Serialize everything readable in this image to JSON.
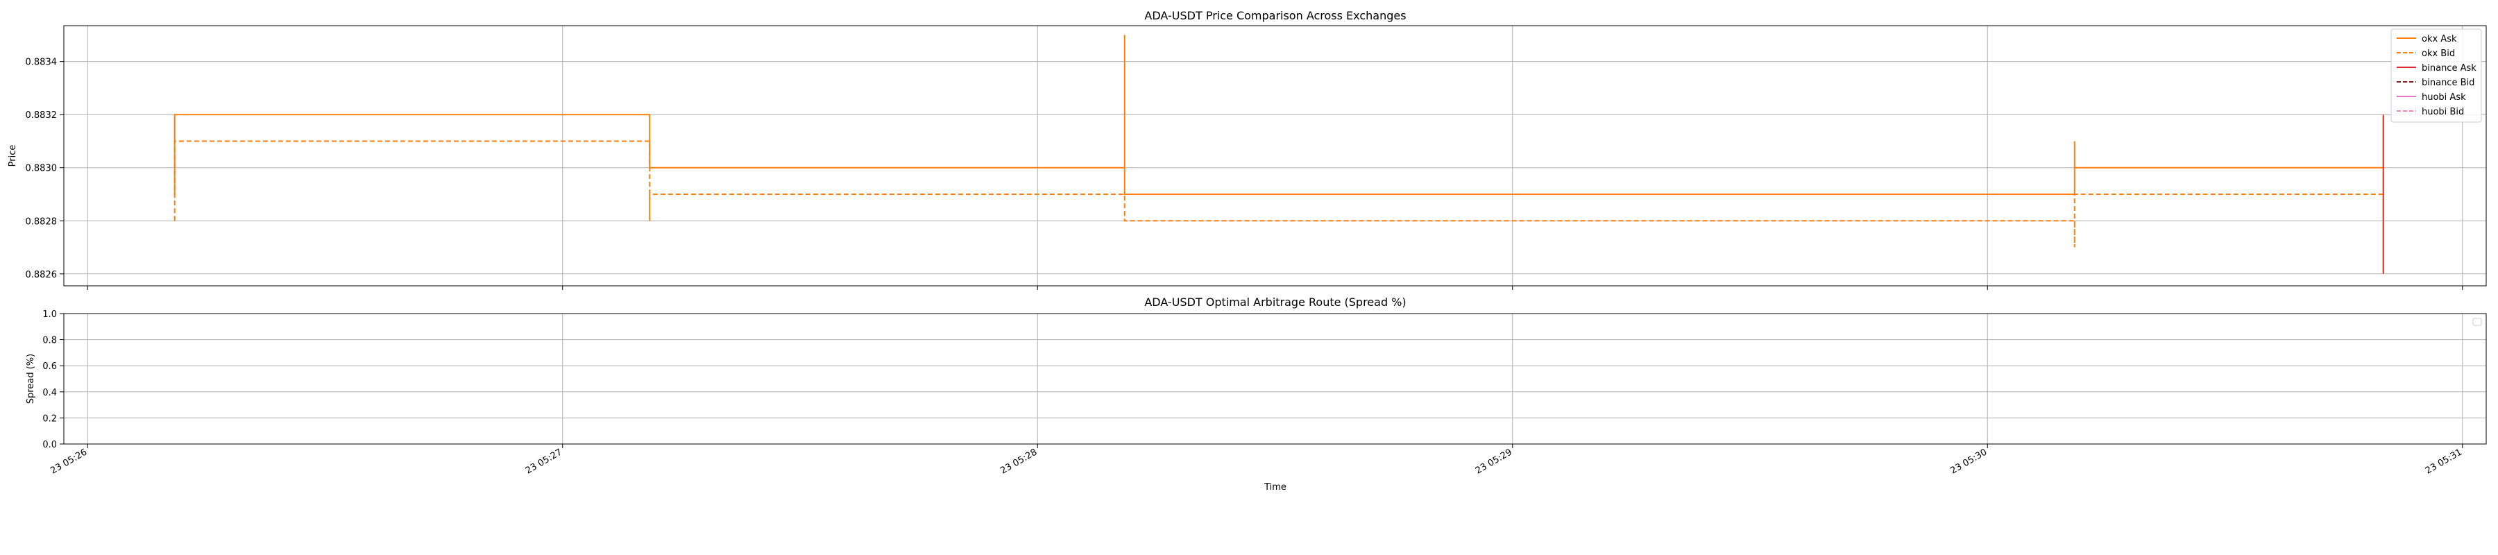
{
  "chart_data": [
    {
      "type": "line",
      "title": "ADA-USDT Price Comparison Across Exchanges",
      "xlabel": "",
      "ylabel": "Price",
      "xlim": [
        "2024-01-23 05:25:57",
        "2024-01-23 05:31:03"
      ],
      "ylim": [
        0.882555,
        0.883535
      ],
      "yticks": [
        0.8826,
        0.8828,
        0.883,
        0.8832,
        0.8834
      ],
      "ytick_labels": [
        "0.8826",
        "0.8828",
        "0.8830",
        "0.8832",
        "0.8834"
      ],
      "grid": true,
      "legend_position": "top-right",
      "series": [
        {
          "name": "okx Ask",
          "color": "#ff7f0e",
          "style": "solid",
          "x": [
            "05:26:11",
            "05:26:11",
            "05:27:11",
            "05:27:11",
            "05:28:11",
            "05:28:11",
            "05:28:11",
            "05:30:11",
            "05:30:11",
            "05:30:11",
            "05:30:50"
          ],
          "y": [
            0.8829,
            0.8832,
            0.8832,
            0.883,
            0.883,
            0.8835,
            0.8829,
            0.8829,
            0.8831,
            0.883,
            0.883
          ]
        },
        {
          "name": "okx Bid",
          "color": "#ff7f0e",
          "style": "dashed",
          "x": [
            "05:26:11",
            "05:26:11",
            "05:27:11",
            "05:27:11",
            "05:27:11",
            "05:28:11",
            "05:28:11",
            "05:28:11",
            "05:30:11",
            "05:30:11",
            "05:30:11",
            "05:30:50"
          ],
          "y": [
            0.8828,
            0.8831,
            0.8831,
            0.8828,
            0.8829,
            0.8829,
            0.8828,
            0.8828,
            0.8828,
            0.8827,
            0.8829,
            0.8829
          ]
        },
        {
          "name": "binance Ask",
          "color": "#d62728",
          "style": "solid",
          "x": [
            "05:30:50",
            "05:30:50"
          ],
          "y": [
            0.8832,
            0.8826
          ]
        },
        {
          "name": "binance Bid",
          "color": "#8c1c1c",
          "style": "dashed",
          "x": [],
          "y": []
        },
        {
          "name": "huobi Ask",
          "color": "#e377c2",
          "style": "solid",
          "x": [],
          "y": []
        },
        {
          "name": "huobi Bid",
          "color": "#f77fbe",
          "style": "dashed",
          "x": [],
          "y": []
        }
      ]
    },
    {
      "type": "line",
      "title": "ADA-USDT Optimal Arbitrage Route (Spread %)",
      "xlabel": "Time",
      "ylabel": "Spread (%)",
      "xlim": [
        "2024-01-23 05:25:57",
        "2024-01-23 05:31:03"
      ],
      "ylim": [
        0.0,
        1.0
      ],
      "yticks": [
        0.0,
        0.2,
        0.4,
        0.6,
        0.8,
        1.0
      ],
      "ytick_labels": [
        "0.0",
        "0.2",
        "0.4",
        "0.6",
        "0.8",
        "1.0"
      ],
      "xticks": [
        "05:26:00",
        "05:27:00",
        "05:28:00",
        "05:29:00",
        "05:30:00",
        "05:31:00"
      ],
      "xtick_labels": [
        "23 05:26",
        "23 05:27",
        "23 05:28",
        "23 05:29",
        "23 05:30",
        "23 05:31"
      ],
      "grid": true,
      "legend_position": "top-right",
      "series": []
    }
  ]
}
